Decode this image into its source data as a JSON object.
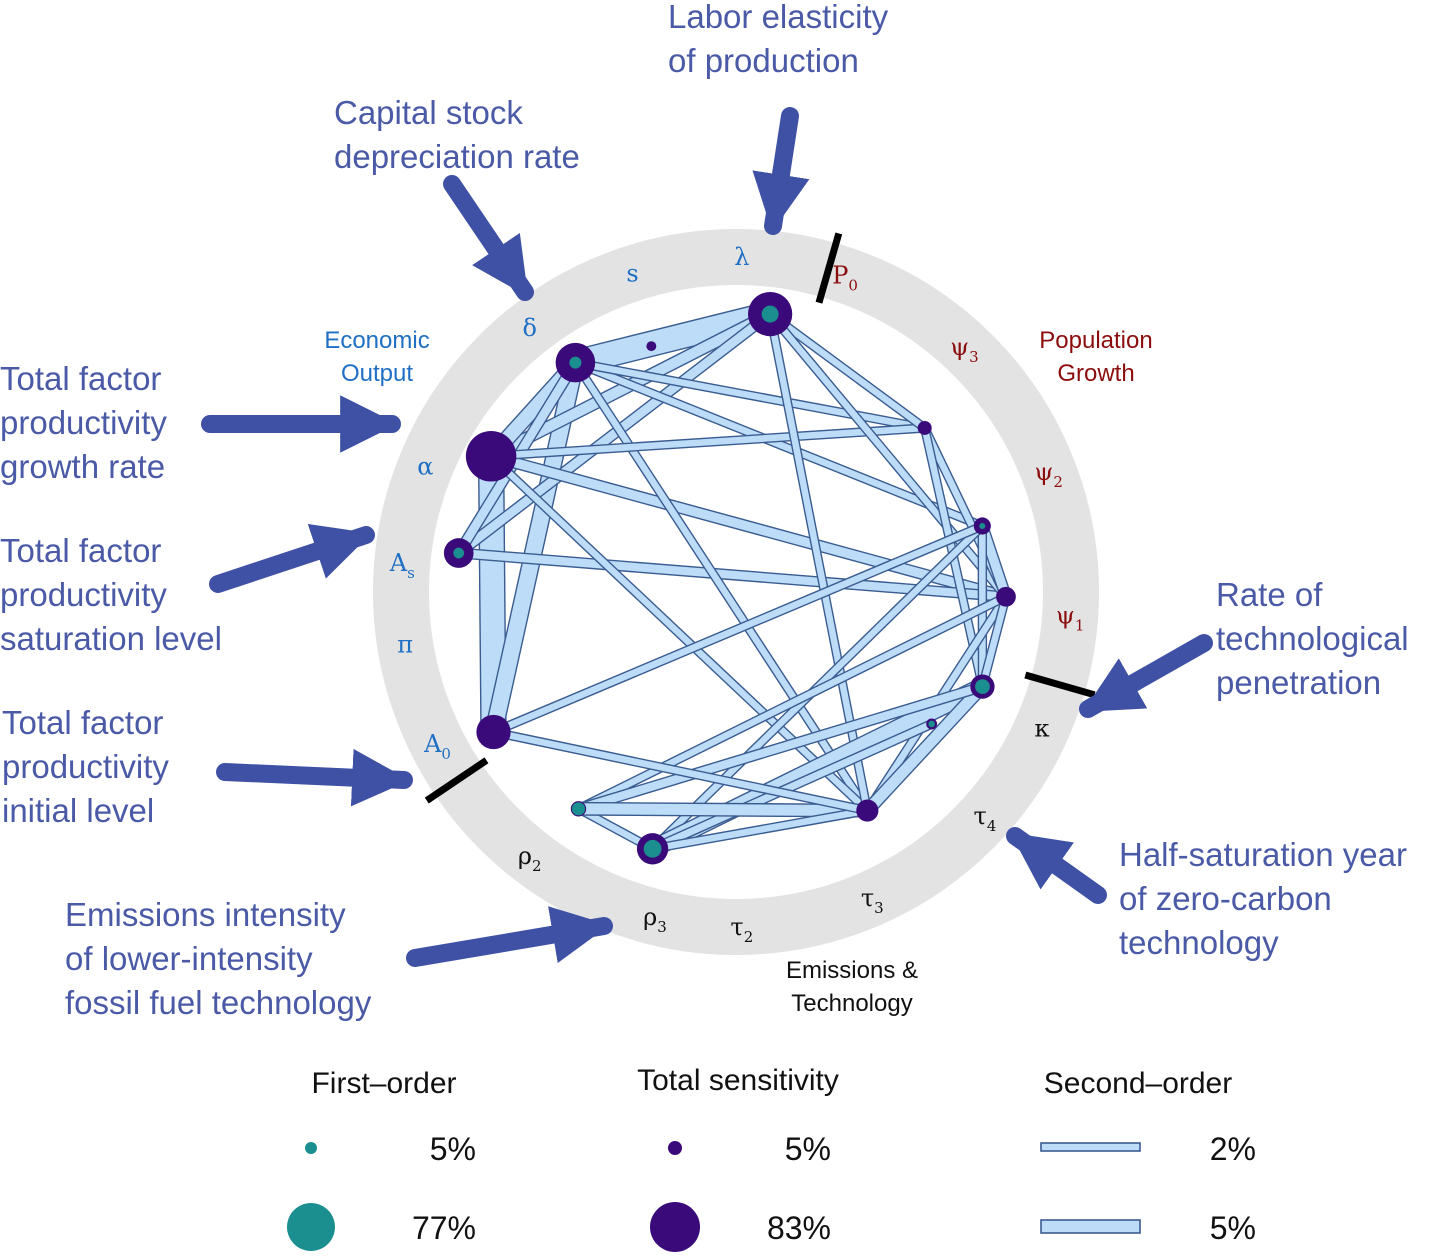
{
  "colors": {
    "ring": "#e3e3e3",
    "edge_fill": "#bcdcf7",
    "edge_stroke": "#3a5c91",
    "total_node": "#3b0a7a",
    "first_node": "#1b8f8f",
    "arrow": "#3f51a5",
    "annotation_text": "#4a5aa6",
    "econ_group": "#1f6fc4",
    "pop_group": "#8b0d0d",
    "emis_group": "#111111",
    "separator": "#000000"
  },
  "groups": {
    "economic": [
      "Economic",
      "Output"
    ],
    "population": [
      "Population",
      "Growth"
    ],
    "emissions": [
      "Emissions &",
      "Technology"
    ]
  },
  "parameters": [
    {
      "id": "lambda",
      "base": "λ",
      "sub": "",
      "group": "economic"
    },
    {
      "id": "s",
      "base": "s",
      "sub": "",
      "group": "economic"
    },
    {
      "id": "delta",
      "base": "δ",
      "sub": "",
      "group": "economic"
    },
    {
      "id": "alpha",
      "base": "α",
      "sub": "",
      "group": "economic"
    },
    {
      "id": "As",
      "base": "A",
      "sub": "s",
      "group": "economic"
    },
    {
      "id": "pi",
      "base": "π",
      "sub": "",
      "group": "economic"
    },
    {
      "id": "A0",
      "base": "A",
      "sub": "0",
      "group": "economic"
    },
    {
      "id": "P0",
      "base": "P",
      "sub": "0",
      "group": "population"
    },
    {
      "id": "psi3",
      "base": "ψ",
      "sub": "3",
      "group": "population"
    },
    {
      "id": "psi2",
      "base": "ψ",
      "sub": "2",
      "group": "population"
    },
    {
      "id": "psi1",
      "base": "ψ",
      "sub": "1",
      "group": "population"
    },
    {
      "id": "kappa",
      "base": "κ",
      "sub": "",
      "group": "emissions"
    },
    {
      "id": "tau4",
      "base": "τ",
      "sub": "4",
      "group": "emissions"
    },
    {
      "id": "tau3",
      "base": "τ",
      "sub": "3",
      "group": "emissions"
    },
    {
      "id": "tau2",
      "base": "τ",
      "sub": "2",
      "group": "emissions"
    },
    {
      "id": "rho3",
      "base": "ρ",
      "sub": "3",
      "group": "emissions"
    },
    {
      "id": "rho2",
      "base": "ρ",
      "sub": "2",
      "group": "emissions"
    }
  ],
  "annotations": [
    {
      "id": "labor",
      "lines": [
        "Labor elasticity",
        "of production"
      ]
    },
    {
      "id": "capital",
      "lines": [
        "Capital stock",
        "depreciation rate"
      ]
    },
    {
      "id": "tfp-growth",
      "lines": [
        "Total factor",
        "productivity",
        "growth rate"
      ]
    },
    {
      "id": "tfp-saturation",
      "lines": [
        "Total factor",
        "productivity",
        "saturation level"
      ]
    },
    {
      "id": "tfp-initial",
      "lines": [
        "Total factor",
        "productivity",
        "initial level"
      ]
    },
    {
      "id": "emissions-intensity",
      "lines": [
        "Emissions intensity",
        "of lower-intensity",
        "fossil fuel technology"
      ]
    },
    {
      "id": "tech-penetration",
      "lines": [
        "Rate of",
        "technological",
        "penetration"
      ]
    },
    {
      "id": "half-saturation",
      "lines": [
        "Half-saturation year",
        "of zero-carbon",
        "technology"
      ]
    }
  ],
  "nodes": [
    {
      "id": "lambda",
      "total": 10,
      "first": 2
    },
    {
      "id": "s",
      "total": 0.5,
      "first": 0
    },
    {
      "id": "delta",
      "total": 8,
      "first": 1
    },
    {
      "id": "alpha",
      "total": 13,
      "first": 0
    },
    {
      "id": "As",
      "total": 4.5,
      "first": 0.8
    },
    {
      "id": "A0",
      "total": 6,
      "first": 0
    },
    {
      "id": "psi3",
      "total": 1,
      "first": 0
    },
    {
      "id": "psi2",
      "total": 1.5,
      "first": 0.2
    },
    {
      "id": "psi1",
      "total": 2,
      "first": 0
    },
    {
      "id": "kappa",
      "total": 3,
      "first": 1.5
    },
    {
      "id": "tau4",
      "total": 0.6,
      "first": 0.3
    },
    {
      "id": "tau3",
      "total": 2.5,
      "first": 0
    },
    {
      "id": "rho3",
      "total": 5,
      "first": 2.2
    },
    {
      "id": "rho2",
      "total": 1.2,
      "first": 1.2
    }
  ],
  "edges": [
    {
      "a": "alpha",
      "b": "A0",
      "value": 4
    },
    {
      "a": "delta",
      "b": "lambda",
      "value": 4
    },
    {
      "a": "delta",
      "b": "A0",
      "value": 2.6
    },
    {
      "a": "alpha",
      "b": "lambda",
      "value": 1.6
    },
    {
      "a": "alpha",
      "b": "delta",
      "value": 2.2
    },
    {
      "a": "As",
      "b": "lambda",
      "value": 1.3
    },
    {
      "a": "As",
      "b": "delta",
      "value": 1.3
    },
    {
      "a": "alpha",
      "b": "psi1",
      "value": 1.4
    },
    {
      "a": "As",
      "b": "psi1",
      "value": 1.2
    },
    {
      "a": "delta",
      "b": "psi2",
      "value": 0.9
    },
    {
      "a": "delta",
      "b": "tau3",
      "value": 0.9
    },
    {
      "a": "delta",
      "b": "psi3",
      "value": 0.9
    },
    {
      "a": "alpha",
      "b": "tau3",
      "value": 0.9
    },
    {
      "a": "alpha",
      "b": "psi3",
      "value": 0.9
    },
    {
      "a": "lambda",
      "b": "psi3",
      "value": 0.9
    },
    {
      "a": "lambda",
      "b": "psi1",
      "value": 0.9
    },
    {
      "a": "lambda",
      "b": "tau3",
      "value": 0.9
    },
    {
      "a": "psi3",
      "b": "psi1",
      "value": 0.9
    },
    {
      "a": "psi3",
      "b": "kappa",
      "value": 0.9
    },
    {
      "a": "psi2",
      "b": "psi1",
      "value": 1.4
    },
    {
      "a": "psi2",
      "b": "kappa",
      "value": 0.9
    },
    {
      "a": "psi2",
      "b": "rho3",
      "value": 0.9
    },
    {
      "a": "psi2",
      "b": "A0",
      "value": 0.9
    },
    {
      "a": "psi1",
      "b": "tau3",
      "value": 0.9
    },
    {
      "a": "psi1",
      "b": "rho2",
      "value": 0.9
    },
    {
      "a": "psi1",
      "b": "kappa",
      "value": 0.9
    },
    {
      "a": "kappa",
      "b": "rho3",
      "value": 2.6
    },
    {
      "a": "kappa",
      "b": "tau3",
      "value": 1.7
    },
    {
      "a": "kappa",
      "b": "rho2",
      "value": 1.2
    },
    {
      "a": "tau4",
      "b": "rho3",
      "value": 1.0
    },
    {
      "a": "rho2",
      "b": "rho3",
      "value": 0.9
    },
    {
      "a": "rho2",
      "b": "tau3",
      "value": 1.7
    },
    {
      "a": "rho3",
      "b": "tau3",
      "value": 0.9
    },
    {
      "a": "A0",
      "b": "tau3",
      "value": 0.9
    }
  ],
  "legend": {
    "first_order": {
      "title": "First–order",
      "small": "5%",
      "large": "77%"
    },
    "total": {
      "title": "Total sensitivity",
      "small": "5%",
      "large": "83%"
    },
    "second_order": {
      "title": "Second–order",
      "small": "2%",
      "large": "5%"
    }
  }
}
